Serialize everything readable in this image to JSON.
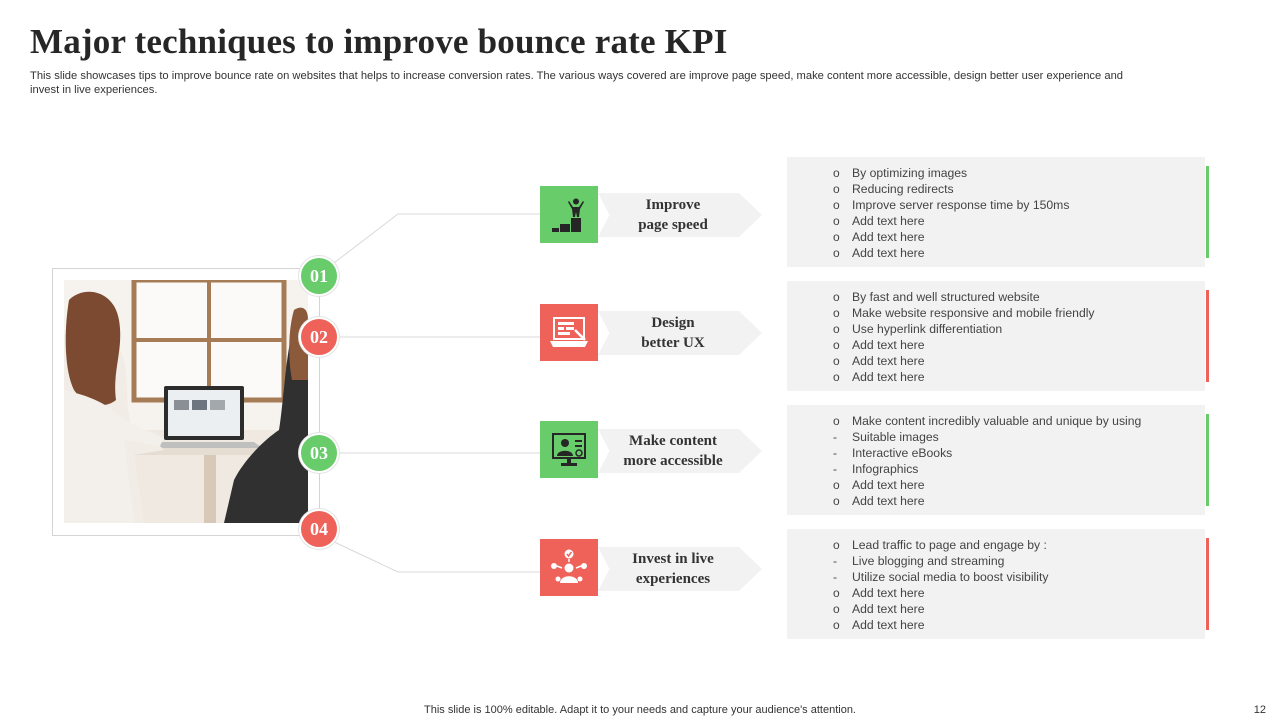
{
  "slide": {
    "title": "Major techniques to improve  bounce rate KPI",
    "subtitle": "This slide showcases tips to improve bounce rate on websites that helps to increase conversion rates. The various ways covered are improve page speed, make content more accessible, design better user experience and invest in live experiences.",
    "footer": "This slide is 100% editable. Adapt it to your needs and capture your audience's attention.",
    "page_number": "12"
  },
  "colors": {
    "green": "#68cc6a",
    "red": "#ee625a",
    "panel": "#f2f2f2"
  },
  "steps": [
    {
      "number": "01",
      "icon": "podium-person-icon",
      "color": "green",
      "label_lines": [
        "Improve",
        "page speed"
      ],
      "bullets": [
        {
          "mark": "o",
          "text": "By optimizing images"
        },
        {
          "mark": "o",
          "text": "Reducing redirects"
        },
        {
          "mark": "o",
          "text": "Improve  server response time by 150ms"
        },
        {
          "mark": "o",
          "text": "Add text here"
        },
        {
          "mark": "o",
          "text": "Add text here"
        },
        {
          "mark": "o",
          "text": "Add text here"
        }
      ]
    },
    {
      "number": "02",
      "icon": "laptop-design-icon",
      "color": "red",
      "label_lines": [
        "Design",
        "better UX"
      ],
      "bullets": [
        {
          "mark": "o",
          "text": "By fast and well structured website"
        },
        {
          "mark": "o",
          "text": "Make website responsive  and mobile friendly"
        },
        {
          "mark": "o",
          "text": "Use hyperlink differentiation"
        },
        {
          "mark": "o",
          "text": "Add text here"
        },
        {
          "mark": "o",
          "text": "Add text here"
        },
        {
          "mark": "o",
          "text": "Add text here"
        }
      ]
    },
    {
      "number": "03",
      "icon": "monitor-user-icon",
      "color": "green",
      "label_lines": [
        "Make content",
        "more accessible"
      ],
      "bullets": [
        {
          "mark": "o",
          "text": "Make content incredibly valuable  and unique by using"
        },
        {
          "mark": "-",
          "text": "Suitable images"
        },
        {
          "mark": "-",
          "text": "Interactive  eBooks"
        },
        {
          "mark": "-",
          "text": "Infographics"
        },
        {
          "mark": "o",
          "text": "Add text here"
        },
        {
          "mark": "o",
          "text": "Add text here"
        }
      ]
    },
    {
      "number": "04",
      "icon": "network-person-icon",
      "color": "red",
      "label_lines": [
        "Invest in live",
        "experiences"
      ],
      "bullets": [
        {
          "mark": "o",
          "text": "Lead traffic to page and engage  by :"
        },
        {
          "mark": "-",
          "text": "Live  blogging  and streaming"
        },
        {
          "mark": "-",
          "text": "Utilize social media to boost visibility"
        },
        {
          "mark": "o",
          "text": "Add text here"
        },
        {
          "mark": "o",
          "text": "Add text here"
        },
        {
          "mark": "o",
          "text": "Add text here"
        }
      ]
    }
  ]
}
